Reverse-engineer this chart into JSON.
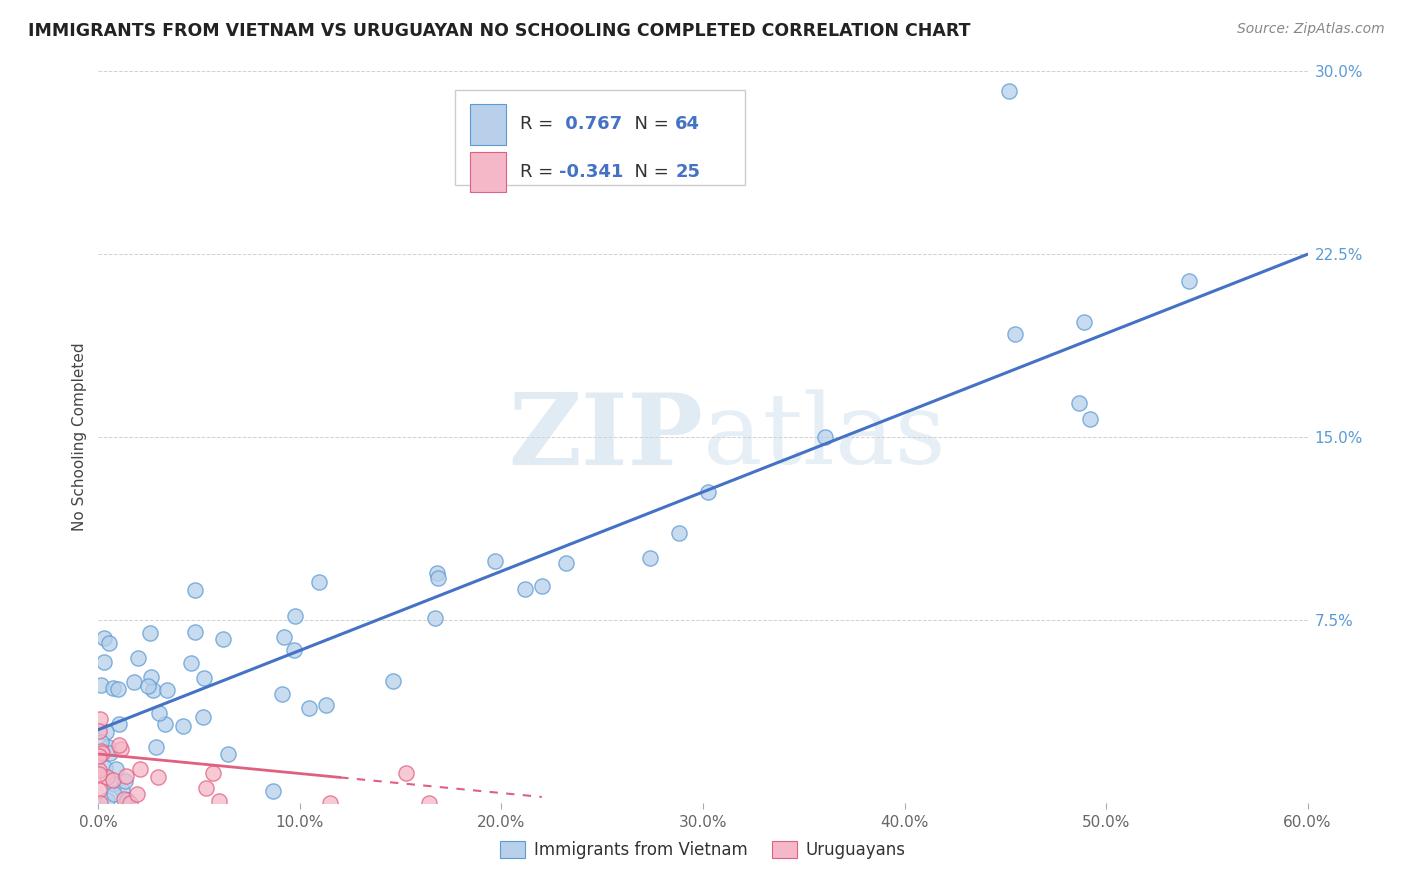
{
  "title": "IMMIGRANTS FROM VIETNAM VS URUGUAYAN NO SCHOOLING COMPLETED CORRELATION CHART",
  "source": "Source: ZipAtlas.com",
  "ylabel": "No Schooling Completed",
  "xlabel": "",
  "xlim": [
    0.0,
    0.6
  ],
  "ylim": [
    0.0,
    0.3
  ],
  "xticks": [
    0.0,
    0.1,
    0.2,
    0.3,
    0.4,
    0.5,
    0.6
  ],
  "yticks": [
    0.0,
    0.075,
    0.15,
    0.225,
    0.3
  ],
  "ytick_labels": [
    "",
    "7.5%",
    "15.0%",
    "22.5%",
    "30.0%"
  ],
  "legend_labels": [
    "Immigrants from Vietnam",
    "Uruguayans"
  ],
  "R_vietnam": 0.767,
  "N_vietnam": 64,
  "R_uruguay": -0.341,
  "N_uruguay": 25,
  "blue_fill": "#b8d0ea",
  "pink_fill": "#f5b8c8",
  "blue_edge": "#5b9bd5",
  "pink_edge": "#e06080",
  "blue_line": "#4472c4",
  "pink_line": "#e06080",
  "watermark_color": "#d8e8f0",
  "background_color": "#ffffff",
  "grid_color": "#cccccc",
  "title_color": "#222222",
  "source_color": "#888888",
  "ytick_color": "#5b9bd5",
  "xtick_color": "#666666",
  "ylabel_color": "#444444"
}
